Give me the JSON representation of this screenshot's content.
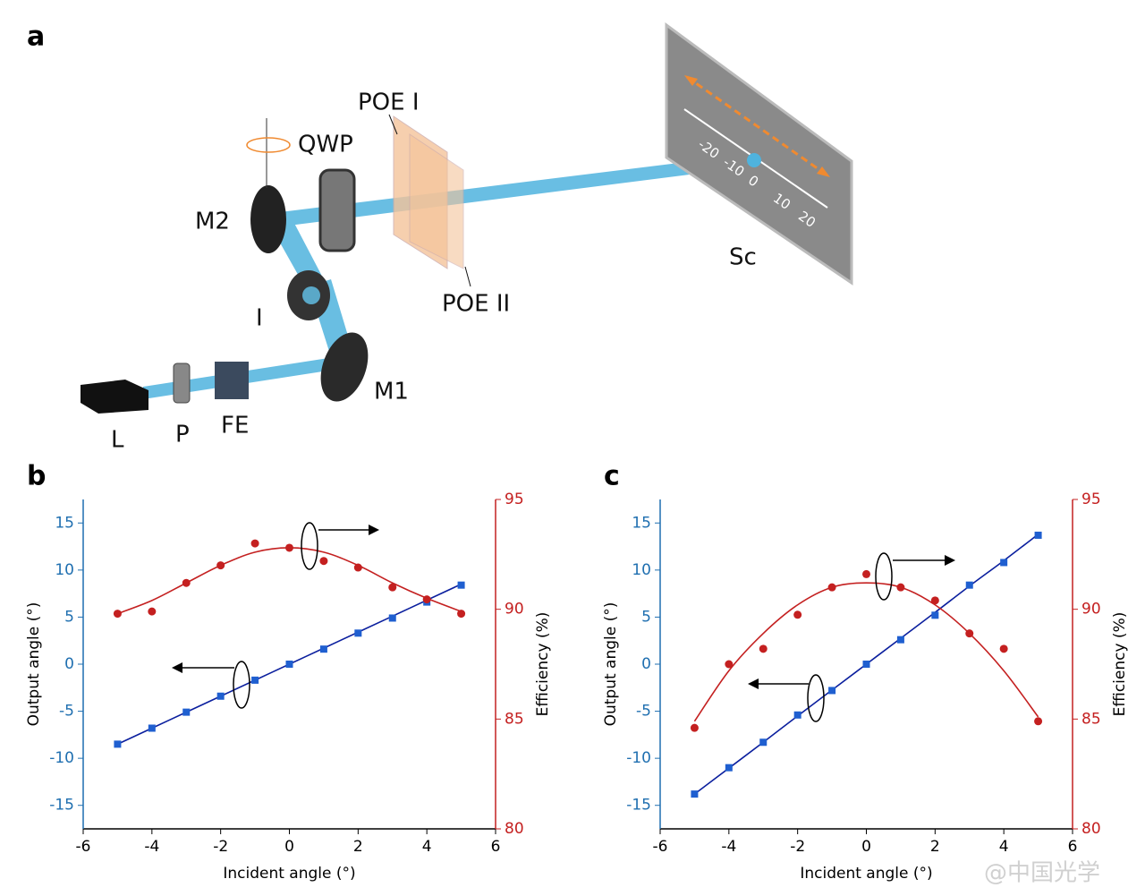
{
  "figure": {
    "panel": "a",
    "labels": {
      "laser": "L",
      "polarizer": "P",
      "filter": "FE",
      "mirror1": "M1",
      "iris": "I",
      "mirror2": "M2",
      "qwp": "QWP",
      "poe1": "POE I",
      "poe2": "POE II",
      "screen": "Sc"
    },
    "scale": [
      "-20",
      "-10",
      "0",
      "10",
      "20"
    ]
  },
  "watermark": "@中国光学",
  "chart_data": [
    {
      "type": "line",
      "panel": "b",
      "xlabel": "Incident angle (°)",
      "ylabel": "Output angle (°)",
      "y2label": "Efficiency (%)",
      "x": [
        -5,
        -4,
        -3,
        -2,
        -1,
        0,
        1,
        2,
        3,
        4,
        5
      ],
      "xlim": [
        -6,
        6
      ],
      "xticks": [
        -6,
        -4,
        -2,
        0,
        2,
        4,
        6
      ],
      "ylim": [
        -17.5,
        17.5
      ],
      "yticks": [
        -15,
        -10,
        -5,
        0,
        5,
        10,
        15
      ],
      "y2lim": [
        80,
        95
      ],
      "y2ticks": [
        80,
        85,
        90,
        95
      ],
      "series": [
        {
          "color": "#1f5fd0",
          "marker": "square",
          "values": [
            -8.5,
            -6.8,
            -5.1,
            -3.4,
            -1.7,
            0,
            1.6,
            3.3,
            4.9,
            6.6,
            8.4
          ]
        },
        {
          "color": "#c42020",
          "marker": "circle",
          "axis": "y2",
          "values": [
            89.8,
            89.9,
            91.2,
            92.0,
            93.0,
            92.8,
            92.2,
            91.9,
            91.0,
            90.45,
            89.8
          ]
        }
      ],
      "fits": [
        {
          "color": "#0b1f9e",
          "values": [
            -8.5,
            -6.8,
            -5.1,
            -3.4,
            -1.7,
            0,
            1.7,
            3.4,
            5.1,
            6.8,
            8.5
          ]
        },
        {
          "color": "#c42020",
          "axis": "y2",
          "values": [
            89.8,
            90.4,
            91.2,
            92.0,
            92.6,
            92.8,
            92.6,
            92.0,
            91.2,
            90.5,
            89.9
          ]
        }
      ]
    },
    {
      "type": "line",
      "panel": "c",
      "xlabel": "Incident angle (°)",
      "ylabel": "Output angle (°)",
      "y2label": "Efficiency (%)",
      "x": [
        -5,
        -4,
        -3,
        -2,
        -1,
        0,
        1,
        2,
        3,
        4,
        5
      ],
      "xlim": [
        -6,
        6
      ],
      "xticks": [
        -6,
        -4,
        -2,
        0,
        2,
        4,
        6
      ],
      "ylim": [
        -17.5,
        17.5
      ],
      "yticks": [
        -15,
        -10,
        -5,
        0,
        5,
        10,
        15
      ],
      "y2lim": [
        80,
        95
      ],
      "y2ticks": [
        80,
        85,
        90,
        95
      ],
      "series": [
        {
          "color": "#1f5fd0",
          "marker": "square",
          "values": [
            -13.8,
            -11,
            -8.3,
            -5.4,
            -2.8,
            0,
            2.6,
            5.2,
            8.4,
            10.8,
            13.7
          ]
        },
        {
          "color": "#c42020",
          "marker": "circle",
          "axis": "y2",
          "values": [
            84.6,
            87.5,
            88.2,
            89.75,
            91.0,
            91.6,
            91.0,
            90.4,
            88.9,
            88.2,
            84.9
          ]
        }
      ],
      "fits": [
        {
          "color": "#0b1f9e",
          "values": [
            -13.8,
            -11.05,
            -8.3,
            -5.5,
            -2.75,
            0,
            2.75,
            5.5,
            8.3,
            11.0,
            13.8
          ]
        },
        {
          "color": "#c42020",
          "axis": "y2",
          "values": [
            84.9,
            87.2,
            88.9,
            90.2,
            91.0,
            91.2,
            91.0,
            90.2,
            88.9,
            87.2,
            85.1
          ]
        }
      ]
    }
  ]
}
